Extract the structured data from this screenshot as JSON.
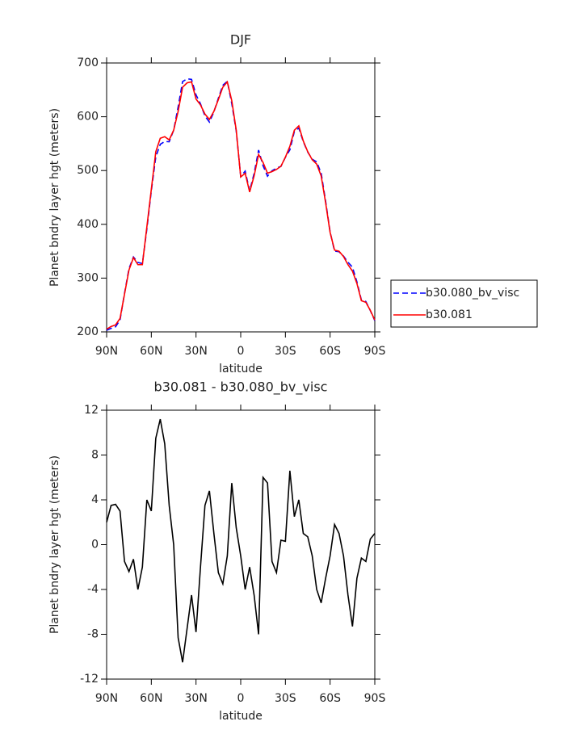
{
  "chart_data": [
    {
      "type": "line",
      "title": "DJF",
      "xlabel": "latitude",
      "ylabel": "Planet bndry layer hgt (meters)",
      "x": [
        90,
        87,
        84,
        81,
        78,
        75,
        72,
        69,
        66,
        63,
        60,
        57,
        54,
        51,
        48,
        45,
        42,
        39,
        36,
        33,
        30,
        27,
        24,
        21,
        18,
        15,
        12,
        9,
        6,
        3,
        0,
        -3,
        -6,
        -9,
        -12,
        -15,
        -18,
        -21,
        -24,
        -27,
        -30,
        -33,
        -36,
        -39,
        -42,
        -45,
        -48,
        -51,
        -54,
        -57,
        -60,
        -63,
        -66,
        -69,
        -72,
        -75,
        -78,
        -81,
        -84,
        -87,
        -90
      ],
      "xlim": [
        90,
        -90
      ],
      "xticks": [
        {
          "value": 90,
          "label": "90N"
        },
        {
          "value": 60,
          "label": "60N"
        },
        {
          "value": 30,
          "label": "30N"
        },
        0,
        {
          "value": -30,
          "label": "30S"
        },
        {
          "value": -60,
          "label": "60S"
        },
        {
          "value": -90,
          "label": "90S"
        }
      ],
      "ylim": [
        200,
        700
      ],
      "yticks": [
        200,
        300,
        400,
        500,
        600,
        700
      ],
      "legend": "right",
      "series": [
        {
          "name": "b30.080_bv_visc",
          "color": "#0000ff",
          "line_style": "dashed",
          "values": [
            203,
            206.5,
            209.4,
            222,
            271.5,
            317.4,
            339.3,
            329,
            327,
            391,
            462,
            525.5,
            548.8,
            554,
            553.5,
            575,
            618.3,
            665.5,
            670.5,
            669.5,
            640.8,
            624,
            601.5,
            590.2,
            609,
            634.5,
            658.5,
            666,
            624.5,
            573.5,
            489,
            499,
            462,
            494.5,
            538,
            509,
            489.5,
            499.5,
            504.5,
            507.6,
            524.7,
            538.4,
            572.5,
            579,
            554,
            534.3,
            521,
            516,
            495.2,
            443,
            386,
            350.2,
            349,
            341,
            329.5,
            320.3,
            293,
            259.2,
            256.5,
            239.5,
            221
          ]
        },
        {
          "name": "b30.081",
          "color": "#ff0000",
          "line_style": "solid",
          "values": [
            205,
            210,
            213,
            225,
            270,
            315,
            338,
            325,
            325,
            395,
            465,
            535,
            560,
            563,
            557,
            575,
            610,
            655,
            663,
            665,
            633,
            622,
            605,
            595,
            610,
            632,
            655,
            665,
            630,
            575,
            488,
            495,
            460,
            490,
            530,
            515,
            495,
            498,
            502,
            508,
            525,
            545,
            575,
            583,
            555,
            535,
            520,
            512,
            490,
            440,
            385,
            352,
            350,
            340,
            325,
            313,
            290,
            258,
            255,
            240,
            222
          ]
        }
      ]
    },
    {
      "type": "line",
      "title": "b30.081 - b30.080_bv_visc",
      "xlabel": "latitude",
      "ylabel": "Planet bndry layer hgt (meters)",
      "x": [
        90,
        87,
        84,
        81,
        78,
        75,
        72,
        69,
        66,
        63,
        60,
        57,
        54,
        51,
        48,
        45,
        42,
        39,
        36,
        33,
        30,
        27,
        24,
        21,
        18,
        15,
        12,
        9,
        6,
        3,
        0,
        -3,
        -6,
        -9,
        -12,
        -15,
        -18,
        -21,
        -24,
        -27,
        -30,
        -33,
        -36,
        -39,
        -42,
        -45,
        -48,
        -51,
        -54,
        -57,
        -60,
        -63,
        -66,
        -69,
        -72,
        -75,
        -78,
        -81,
        -84,
        -87,
        -90
      ],
      "xlim": [
        90,
        -90
      ],
      "xticks": [
        {
          "value": 90,
          "label": "90N"
        },
        {
          "value": 60,
          "label": "60N"
        },
        {
          "value": 30,
          "label": "30N"
        },
        0,
        {
          "value": -30,
          "label": "30S"
        },
        {
          "value": -60,
          "label": "60S"
        },
        {
          "value": -90,
          "label": "90S"
        }
      ],
      "ylim": [
        -12,
        12
      ],
      "yticks": [
        -12,
        -8,
        -4,
        0,
        4,
        8,
        12
      ],
      "series": [
        {
          "color": "#000000",
          "line_style": "solid",
          "values": [
            2,
            3.5,
            3.6,
            3,
            -1.5,
            -2.4,
            -1.3,
            -4,
            -2,
            4,
            3,
            9.5,
            11.2,
            9,
            3.5,
            0,
            -8.3,
            -10.5,
            -7.5,
            -4.5,
            -7.8,
            -2,
            3.5,
            4.8,
            1,
            -2.5,
            -3.5,
            -1,
            5.5,
            1.5,
            -1,
            -4,
            -2,
            -4.5,
            -8,
            6,
            5.5,
            -1.5,
            -2.5,
            0.4,
            0.3,
            6.6,
            2.5,
            4,
            1,
            0.7,
            -1,
            -4,
            -5.2,
            -3,
            -1,
            1.8,
            1,
            -1,
            -4.5,
            -7.3,
            -3,
            -1.2,
            -1.5,
            0.5,
            1
          ]
        }
      ]
    }
  ]
}
